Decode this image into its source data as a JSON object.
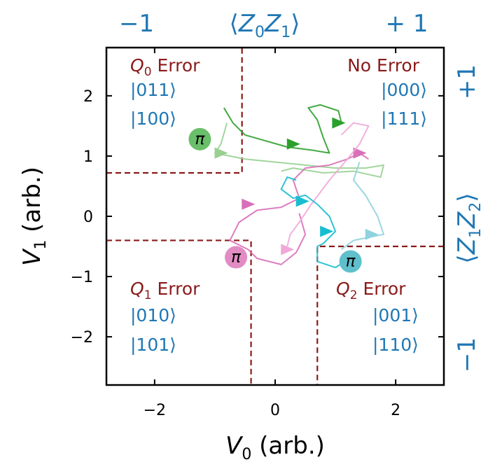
{
  "chart_data": {
    "type": "line",
    "xlabel": "V_0 (arb.)",
    "ylabel": "V_1 (arb.)",
    "xlim": [
      -2.8,
      2.8
    ],
    "ylim": [
      -2.8,
      2.8
    ],
    "x_ticks": [
      "−2",
      "0",
      "2"
    ],
    "y_ticks": [
      "2",
      "1",
      "0",
      "−1",
      "−2"
    ],
    "x_tick_values": [
      -2,
      0,
      2
    ],
    "y_tick_values": [
      2,
      1,
      0,
      -1,
      -2
    ],
    "top_axis": {
      "label": "⟨Z₀Z₁⟩",
      "left": "−1",
      "right": "+ 1"
    },
    "right_axis": {
      "label": "⟨Z₁Z₂⟩",
      "top": "+1",
      "bottom": "−1"
    },
    "boundaries": {
      "q0": {
        "x": -0.55,
        "y": 0.72
      },
      "q1": {
        "x": -0.4,
        "y": -0.4
      },
      "q2": {
        "x": 0.7,
        "y": -0.5
      }
    },
    "regions": [
      {
        "title": "Q_0 Error",
        "kets": [
          "|011⟩",
          "|100⟩"
        ]
      },
      {
        "title": "No Error",
        "kets": [
          "|000⟩",
          "|111⟩"
        ]
      },
      {
        "title": "Q_1 Error",
        "kets": [
          "|010⟩",
          "|101⟩"
        ]
      },
      {
        "title": "Q_2 Error",
        "kets": [
          "|001⟩",
          "|110⟩"
        ]
      }
    ],
    "pi_markers": [
      {
        "label": "π",
        "x": -1.25,
        "y": 1.28,
        "color": "#6abf6a"
      },
      {
        "label": "π",
        "x": -0.65,
        "y": -0.68,
        "color": "#e28cc4"
      },
      {
        "label": "π",
        "x": 1.25,
        "y": -0.75,
        "color": "#5fc0cc"
      }
    ],
    "series": [
      {
        "color": "#2ca02c",
        "points": [
          [
            1.1,
            1.55
          ],
          [
            1.05,
            1.75
          ],
          [
            0.75,
            1.85
          ],
          [
            0.55,
            1.8
          ],
          [
            0.7,
            1.6
          ],
          [
            0.8,
            1.3
          ],
          [
            0.9,
            1.05
          ],
          [
            0.6,
            1.1
          ],
          [
            0.2,
            1.15
          ],
          [
            -0.15,
            1.25
          ],
          [
            -0.5,
            1.35
          ],
          [
            -0.7,
            1.55
          ],
          [
            -0.85,
            1.8
          ]
        ],
        "arrows": [
          [
            1.05,
            1.55
          ],
          [
            0.3,
            1.2
          ]
        ]
      },
      {
        "color": "#98d092",
        "points": [
          [
            -0.8,
            1.55
          ],
          [
            -0.9,
            1.2
          ],
          [
            -1.0,
            1.05
          ],
          [
            -0.5,
            0.95
          ],
          [
            0,
            0.9
          ],
          [
            0.5,
            0.85
          ],
          [
            1.0,
            0.8
          ],
          [
            1.5,
            0.8
          ],
          [
            1.8,
            0.85
          ],
          [
            1.75,
            0.65
          ],
          [
            1.3,
            0.75
          ],
          [
            0.8,
            0.72
          ],
          [
            0.3,
            0.8
          ],
          [
            0.1,
            0.75
          ]
        ],
        "arrows": [
          [
            -0.9,
            1.05
          ]
        ]
      },
      {
        "color": "#d96fb8",
        "points": [
          [
            1.55,
            0.95
          ],
          [
            1.4,
            1.05
          ],
          [
            1.2,
            0.95
          ],
          [
            0.9,
            0.85
          ],
          [
            0.5,
            0.8
          ],
          [
            0.3,
            0.6
          ],
          [
            0.4,
            0.3
          ],
          [
            0.1,
            0.15
          ],
          [
            -0.3,
            0.1
          ],
          [
            -0.6,
            -0.1
          ],
          [
            -0.75,
            -0.4
          ],
          [
            -0.45,
            -0.55
          ],
          [
            -0.3,
            -0.7
          ],
          [
            0.1,
            -0.8
          ],
          [
            0.35,
            -0.6
          ],
          [
            0.5,
            -0.3
          ],
          [
            0.4,
            0.05
          ]
        ],
        "arrows": [
          [
            1.4,
            1.05
          ],
          [
            -0.45,
            0.2
          ]
        ]
      },
      {
        "color": "#f0a8d8",
        "points": [
          [
            1.1,
            1.35
          ],
          [
            1.3,
            1.55
          ],
          [
            1.55,
            1.5
          ],
          [
            1.4,
            1.2
          ],
          [
            1.2,
            0.95
          ],
          [
            0.9,
            0.6
          ],
          [
            0.6,
            0.2
          ],
          [
            0.4,
            -0.1
          ],
          [
            0.25,
            -0.3
          ],
          [
            0.2,
            -0.5
          ]
        ],
        "arrows": [
          [
            0.2,
            -0.55
          ]
        ]
      },
      {
        "color": "#17becf",
        "points": [
          [
            0.35,
            0.6
          ],
          [
            0.2,
            0.65
          ],
          [
            0.1,
            0.45
          ],
          [
            0.3,
            0.3
          ],
          [
            0.5,
            0.35
          ],
          [
            0.7,
            0.2
          ],
          [
            0.9,
            0.0
          ],
          [
            1.0,
            -0.25
          ],
          [
            0.8,
            -0.45
          ],
          [
            0.7,
            -0.5
          ],
          [
            0.7,
            -0.75
          ],
          [
            1.0,
            -0.85
          ],
          [
            1.25,
            -0.7
          ]
        ],
        "arrows": [
          [
            0.45,
            0.25
          ],
          [
            0.85,
            -0.25
          ]
        ]
      },
      {
        "color": "#8fd3df",
        "points": [
          [
            1.4,
            0.9
          ],
          [
            1.3,
            0.6
          ],
          [
            1.5,
            0.35
          ],
          [
            1.7,
            0.0
          ],
          [
            1.8,
            -0.3
          ],
          [
            1.55,
            -0.35
          ],
          [
            1.3,
            -0.4
          ],
          [
            1.1,
            -0.55
          ]
        ],
        "arrows": [
          [
            1.6,
            -0.3
          ]
        ]
      }
    ]
  }
}
